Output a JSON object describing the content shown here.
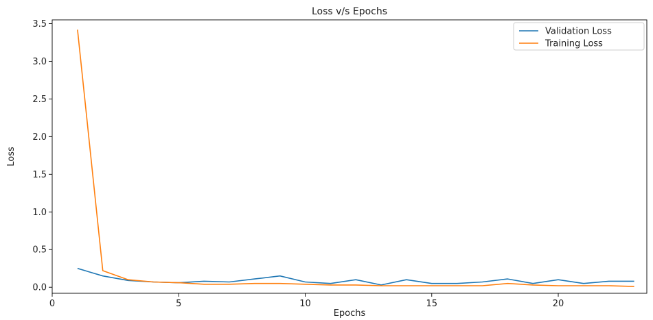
{
  "chart_data": {
    "type": "line",
    "title": "Loss v/s Epochs",
    "xlabel": "Epochs",
    "ylabel": "Loss",
    "xlim": [
      0,
      23.5
    ],
    "ylim": [
      -0.08,
      3.55
    ],
    "xticks": [
      0,
      5,
      10,
      15,
      20
    ],
    "yticks": [
      0.0,
      0.5,
      1.0,
      1.5,
      2.0,
      2.5,
      3.0,
      3.5
    ],
    "xtick_labels": [
      "0",
      "5",
      "10",
      "15",
      "20"
    ],
    "ytick_labels": [
      "0.0",
      "0.5",
      "1.0",
      "1.5",
      "2.0",
      "2.5",
      "3.0",
      "3.5"
    ],
    "grid": false,
    "legend_position": "top-right",
    "x": [
      1,
      2,
      3,
      4,
      5,
      6,
      7,
      8,
      9,
      10,
      11,
      12,
      13,
      14,
      15,
      16,
      17,
      18,
      19,
      20,
      21,
      22,
      23
    ],
    "series": [
      {
        "name": "Validation Loss",
        "color": "#1f77b4",
        "values": [
          0.25,
          0.15,
          0.09,
          0.07,
          0.06,
          0.08,
          0.07,
          0.11,
          0.15,
          0.07,
          0.05,
          0.1,
          0.03,
          0.1,
          0.05,
          0.05,
          0.07,
          0.11,
          0.05,
          0.1,
          0.05,
          0.08,
          0.08
        ]
      },
      {
        "name": "Training Loss",
        "color": "#ff7f0e",
        "values": [
          3.42,
          0.22,
          0.1,
          0.07,
          0.06,
          0.04,
          0.04,
          0.05,
          0.05,
          0.04,
          0.03,
          0.03,
          0.02,
          0.02,
          0.02,
          0.02,
          0.02,
          0.05,
          0.03,
          0.02,
          0.02,
          0.02,
          0.01
        ]
      }
    ]
  }
}
